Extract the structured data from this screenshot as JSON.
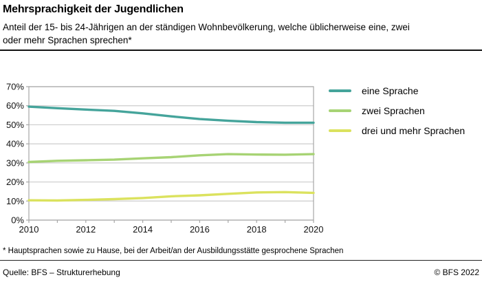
{
  "header": {
    "title": "Mehrsprachigkeit der Jugendlichen",
    "subtitle": "Anteil der 15- bis 24-Jährigen an der ständigen Wohnbevölkerung, welche üblicherweise eine, zwei oder mehr Sprachen sprechen*"
  },
  "chart_data": {
    "type": "line",
    "title": "",
    "xlabel": "",
    "ylabel": "",
    "x": [
      2010,
      2011,
      2012,
      2013,
      2014,
      2015,
      2016,
      2017,
      2018,
      2019,
      2020
    ],
    "series": [
      {
        "name": "eine Sprache",
        "color": "#45a49b",
        "values": [
          59.5,
          58.7,
          58.0,
          57.3,
          56.0,
          54.4,
          53.0,
          52.1,
          51.4,
          51.1,
          51.1
        ]
      },
      {
        "name": "zwei Sprachen",
        "color": "#a7d374",
        "values": [
          30.5,
          31.1,
          31.4,
          31.7,
          32.4,
          33.0,
          34.0,
          34.6,
          34.4,
          34.3,
          34.6
        ]
      },
      {
        "name": "drei und mehr Sprachen",
        "color": "#dbe25e",
        "values": [
          10.4,
          10.3,
          10.6,
          11.0,
          11.6,
          12.5,
          13.0,
          13.8,
          14.5,
          14.7,
          14.3
        ]
      }
    ],
    "ylim": [
      0,
      70
    ],
    "yticks": [
      0,
      10,
      20,
      30,
      40,
      50,
      60,
      70
    ],
    "ytick_suffix": "%",
    "xtick_labels": [
      "2010",
      "2012",
      "2014",
      "2016",
      "2018",
      "2020"
    ],
    "grid": true,
    "grid_color": "#cccccc",
    "axis_color": "#a6a6a6",
    "legend_position": "right"
  },
  "footnote": "* Hauptsprachen sowie zu Hause, bei der Arbeit/an der Ausbildungsstätte gesprochene Sprachen",
  "footer": {
    "source": "Quelle: BFS – Strukturerhebung",
    "copyright": "© BFS 2022"
  }
}
